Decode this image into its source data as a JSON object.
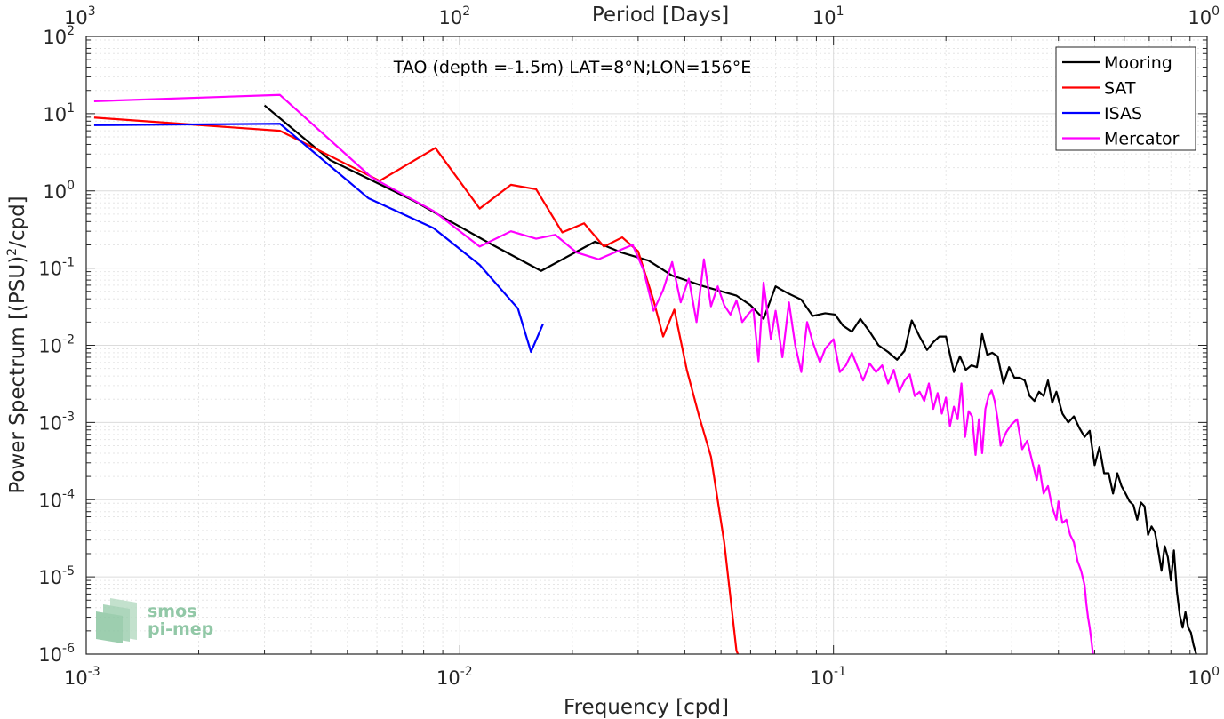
{
  "chart_data": {
    "type": "line",
    "title": "TAO (depth =-1.5m) LAT=8°N;LON=156°E",
    "xlabel": "Frequency [cpd]",
    "ylabel": "Power Spectrum [(PSU)",
    "ylabel_sup": "2",
    "ylabel_tail": "/cpd]",
    "x2label": "Period [Days]",
    "xscale": "log",
    "yscale": "log",
    "xlim": [
      0.001,
      1
    ],
    "ylim": [
      1e-06,
      100
    ],
    "grid": true,
    "legend_position": "top-right",
    "xticks": [
      {
        "value": 0.001,
        "base": "10",
        "exp": "-3"
      },
      {
        "value": 0.01,
        "base": "10",
        "exp": "-2"
      },
      {
        "value": 0.1,
        "base": "10",
        "exp": "-1"
      },
      {
        "value": 1,
        "base": "10",
        "exp": "0"
      }
    ],
    "x2ticks": [
      {
        "base": "10",
        "exp": "3"
      },
      {
        "base": "10",
        "exp": "2"
      },
      {
        "base": "10",
        "exp": "1"
      },
      {
        "base": "10",
        "exp": "0"
      }
    ],
    "yticks": [
      {
        "value": 1e-06,
        "base": "10",
        "exp": "-6"
      },
      {
        "value": 1e-05,
        "base": "10",
        "exp": "-5"
      },
      {
        "value": 0.0001,
        "base": "10",
        "exp": "-4"
      },
      {
        "value": 0.001,
        "base": "10",
        "exp": "-3"
      },
      {
        "value": 0.01,
        "base": "10",
        "exp": "-2"
      },
      {
        "value": 0.1,
        "base": "10",
        "exp": "-1"
      },
      {
        "value": 1,
        "base": "10",
        "exp": "0"
      },
      {
        "value": 10,
        "base": "10",
        "exp": "1"
      },
      {
        "value": 100,
        "base": "10",
        "exp": "2"
      }
    ],
    "series": [
      {
        "name": "Mooring",
        "color": "#000000",
        "points": [
          [
            0.003,
            12.8
          ],
          [
            0.0045,
            2.5
          ],
          [
            0.0075,
            0.75
          ],
          [
            0.012,
            0.21
          ],
          [
            0.0165,
            0.092
          ],
          [
            0.023,
            0.22
          ],
          [
            0.027,
            0.16
          ],
          [
            0.032,
            0.125
          ],
          [
            0.037,
            0.08
          ],
          [
            0.045,
            0.058
          ],
          [
            0.055,
            0.044
          ],
          [
            0.06,
            0.033
          ],
          [
            0.065,
            0.022
          ],
          [
            0.07,
            0.058
          ],
          [
            0.075,
            0.048
          ],
          [
            0.082,
            0.039
          ],
          [
            0.088,
            0.024
          ],
          [
            0.095,
            0.026
          ],
          [
            0.101,
            0.025
          ],
          [
            0.106,
            0.018
          ],
          [
            0.112,
            0.015
          ],
          [
            0.118,
            0.022
          ],
          [
            0.125,
            0.015
          ],
          [
            0.132,
            0.01
          ],
          [
            0.14,
            0.0082
          ],
          [
            0.148,
            0.0065
          ],
          [
            0.155,
            0.0085
          ],
          [
            0.162,
            0.021
          ],
          [
            0.17,
            0.013
          ],
          [
            0.178,
            0.0087
          ],
          [
            0.185,
            0.011
          ],
          [
            0.192,
            0.013
          ],
          [
            0.2,
            0.013
          ],
          [
            0.21,
            0.0045
          ],
          [
            0.218,
            0.0072
          ],
          [
            0.226,
            0.0048
          ],
          [
            0.234,
            0.0055
          ],
          [
            0.242,
            0.0052
          ],
          [
            0.25,
            0.014
          ],
          [
            0.258,
            0.0075
          ],
          [
            0.266,
            0.008
          ],
          [
            0.275,
            0.0072
          ],
          [
            0.285,
            0.0032
          ],
          [
            0.295,
            0.0052
          ],
          [
            0.305,
            0.0038
          ],
          [
            0.315,
            0.0038
          ],
          [
            0.325,
            0.0035
          ],
          [
            0.335,
            0.0022
          ],
          [
            0.345,
            0.0019
          ],
          [
            0.355,
            0.0025
          ],
          [
            0.365,
            0.0022
          ],
          [
            0.375,
            0.0035
          ],
          [
            0.385,
            0.0018
          ],
          [
            0.395,
            0.0025
          ],
          [
            0.41,
            0.0013
          ],
          [
            0.425,
            0.001
          ],
          [
            0.44,
            0.0012
          ],
          [
            0.455,
            0.00085
          ],
          [
            0.47,
            0.00065
          ],
          [
            0.485,
            0.00078
          ],
          [
            0.5,
            0.00028
          ],
          [
            0.515,
            0.00048
          ],
          [
            0.53,
            0.00022
          ],
          [
            0.545,
            0.00022
          ],
          [
            0.56,
            0.00012
          ],
          [
            0.575,
            0.00022
          ],
          [
            0.59,
            0.00015
          ],
          [
            0.605,
            0.00012
          ],
          [
            0.62,
            9.5e-05
          ],
          [
            0.635,
            8.5e-05
          ],
          [
            0.65,
            5.5e-05
          ],
          [
            0.665,
            9.2e-05
          ],
          [
            0.68,
            8.2e-05
          ],
          [
            0.695,
            3.5e-05
          ],
          [
            0.71,
            4.5e-05
          ],
          [
            0.725,
            3.8e-05
          ],
          [
            0.74,
            2.2e-05
          ],
          [
            0.755,
            1.2e-05
          ],
          [
            0.77,
            2.5e-05
          ],
          [
            0.785,
            1.8e-05
          ],
          [
            0.8,
            9e-06
          ],
          [
            0.815,
            2.2e-05
          ],
          [
            0.83,
            6.5e-06
          ],
          [
            0.845,
            3.2e-06
          ],
          [
            0.86,
            2.2e-06
          ],
          [
            0.875,
            3.5e-06
          ],
          [
            0.89,
            2.2e-06
          ],
          [
            0.905,
            1.9e-06
          ],
          [
            0.92,
            1.3e-06
          ],
          [
            0.935,
            1e-06
          ]
        ]
      },
      {
        "name": "SAT",
        "color": "#ff0000",
        "points": [
          [
            0.00105,
            8.9
          ],
          [
            0.0033,
            6.0
          ],
          [
            0.0061,
            1.35
          ],
          [
            0.0086,
            3.6
          ],
          [
            0.0113,
            0.59
          ],
          [
            0.0137,
            1.2
          ],
          [
            0.016,
            1.05
          ],
          [
            0.0188,
            0.29
          ],
          [
            0.0215,
            0.38
          ],
          [
            0.0243,
            0.19
          ],
          [
            0.0272,
            0.25
          ],
          [
            0.03,
            0.165
          ],
          [
            0.033,
            0.038
          ],
          [
            0.035,
            0.013
          ],
          [
            0.0375,
            0.029
          ],
          [
            0.0405,
            0.0048
          ],
          [
            0.0437,
            0.0012
          ],
          [
            0.047,
            0.00036
          ],
          [
            0.051,
            2.8e-05
          ],
          [
            0.055,
            1.1e-06
          ],
          [
            0.0555,
            1e-06
          ]
        ]
      },
      {
        "name": "ISAS",
        "color": "#0000ff",
        "points": [
          [
            0.00105,
            7.1
          ],
          [
            0.0033,
            7.4
          ],
          [
            0.0057,
            0.8
          ],
          [
            0.0085,
            0.33
          ],
          [
            0.0113,
            0.11
          ],
          [
            0.0143,
            0.03
          ],
          [
            0.0155,
            0.0082
          ],
          [
            0.0167,
            0.019
          ]
        ]
      },
      {
        "name": "Mercator",
        "color": "#ff00ff",
        "points": [
          [
            0.00105,
            14.5
          ],
          [
            0.0033,
            17.5
          ],
          [
            0.0058,
            1.5
          ],
          [
            0.0085,
            0.55
          ],
          [
            0.0113,
            0.19
          ],
          [
            0.0137,
            0.3
          ],
          [
            0.016,
            0.24
          ],
          [
            0.018,
            0.27
          ],
          [
            0.0205,
            0.16
          ],
          [
            0.0235,
            0.13
          ],
          [
            0.0275,
            0.18
          ],
          [
            0.029,
            0.2
          ],
          [
            0.031,
            0.095
          ],
          [
            0.033,
            0.028
          ],
          [
            0.035,
            0.052
          ],
          [
            0.037,
            0.12
          ],
          [
            0.039,
            0.036
          ],
          [
            0.041,
            0.073
          ],
          [
            0.043,
            0.02
          ],
          [
            0.045,
            0.13
          ],
          [
            0.047,
            0.032
          ],
          [
            0.049,
            0.058
          ],
          [
            0.051,
            0.033
          ],
          [
            0.053,
            0.025
          ],
          [
            0.055,
            0.038
          ],
          [
            0.057,
            0.02
          ],
          [
            0.059,
            0.025
          ],
          [
            0.061,
            0.03
          ],
          [
            0.063,
            0.0062
          ],
          [
            0.065,
            0.065
          ],
          [
            0.068,
            0.012
          ],
          [
            0.07,
            0.028
          ],
          [
            0.073,
            0.007
          ],
          [
            0.076,
            0.036
          ],
          [
            0.079,
            0.01
          ],
          [
            0.082,
            0.0045
          ],
          [
            0.085,
            0.02
          ],
          [
            0.088,
            0.011
          ],
          [
            0.092,
            0.006
          ],
          [
            0.095,
            0.009
          ],
          [
            0.1,
            0.012
          ],
          [
            0.104,
            0.0045
          ],
          [
            0.108,
            0.0055
          ],
          [
            0.112,
            0.008
          ],
          [
            0.116,
            0.0052
          ],
          [
            0.12,
            0.0035
          ],
          [
            0.125,
            0.0058
          ],
          [
            0.13,
            0.0045
          ],
          [
            0.135,
            0.0055
          ],
          [
            0.14,
            0.0032
          ],
          [
            0.145,
            0.0048
          ],
          [
            0.15,
            0.0025
          ],
          [
            0.155,
            0.0035
          ],
          [
            0.16,
            0.0042
          ],
          [
            0.165,
            0.0022
          ],
          [
            0.17,
            0.0025
          ],
          [
            0.175,
            0.0019
          ],
          [
            0.18,
            0.0032
          ],
          [
            0.185,
            0.0015
          ],
          [
            0.19,
            0.0024
          ],
          [
            0.195,
            0.0013
          ],
          [
            0.2,
            0.0021
          ],
          [
            0.205,
            0.0009
          ],
          [
            0.21,
            0.0016
          ],
          [
            0.215,
            0.0011
          ],
          [
            0.22,
            0.0032
          ],
          [
            0.225,
            0.00065
          ],
          [
            0.23,
            0.0014
          ],
          [
            0.235,
            0.0012
          ],
          [
            0.24,
            0.00038
          ],
          [
            0.245,
            0.0011
          ],
          [
            0.25,
            0.0004
          ],
          [
            0.255,
            0.0015
          ],
          [
            0.26,
            0.0022
          ],
          [
            0.265,
            0.0026
          ],
          [
            0.27,
            0.0019
          ],
          [
            0.275,
            0.0011
          ],
          [
            0.28,
            0.0005
          ],
          [
            0.29,
            0.00075
          ],
          [
            0.3,
            0.00095
          ],
          [
            0.31,
            0.0011
          ],
          [
            0.32,
            0.00045
          ],
          [
            0.33,
            0.00058
          ],
          [
            0.34,
            0.00032
          ],
          [
            0.35,
            0.00018
          ],
          [
            0.355,
            0.00028
          ],
          [
            0.365,
            0.00012
          ],
          [
            0.375,
            0.00015
          ],
          [
            0.385,
            8e-05
          ],
          [
            0.395,
            5.5e-05
          ],
          [
            0.4,
            9.5e-05
          ],
          [
            0.41,
            5e-05
          ],
          [
            0.42,
            5.5e-05
          ],
          [
            0.43,
            3.5e-05
          ],
          [
            0.44,
            2.8e-05
          ],
          [
            0.45,
            1.6e-05
          ],
          [
            0.46,
            1.2e-05
          ],
          [
            0.47,
            7.8e-06
          ],
          [
            0.475,
            4.5e-06
          ],
          [
            0.48,
            3e-06
          ],
          [
            0.485,
            2.2e-06
          ],
          [
            0.49,
            1.5e-06
          ],
          [
            0.495,
            1e-06
          ]
        ]
      }
    ]
  },
  "logo": {
    "line1": "smos",
    "line2": "pi-mep"
  }
}
